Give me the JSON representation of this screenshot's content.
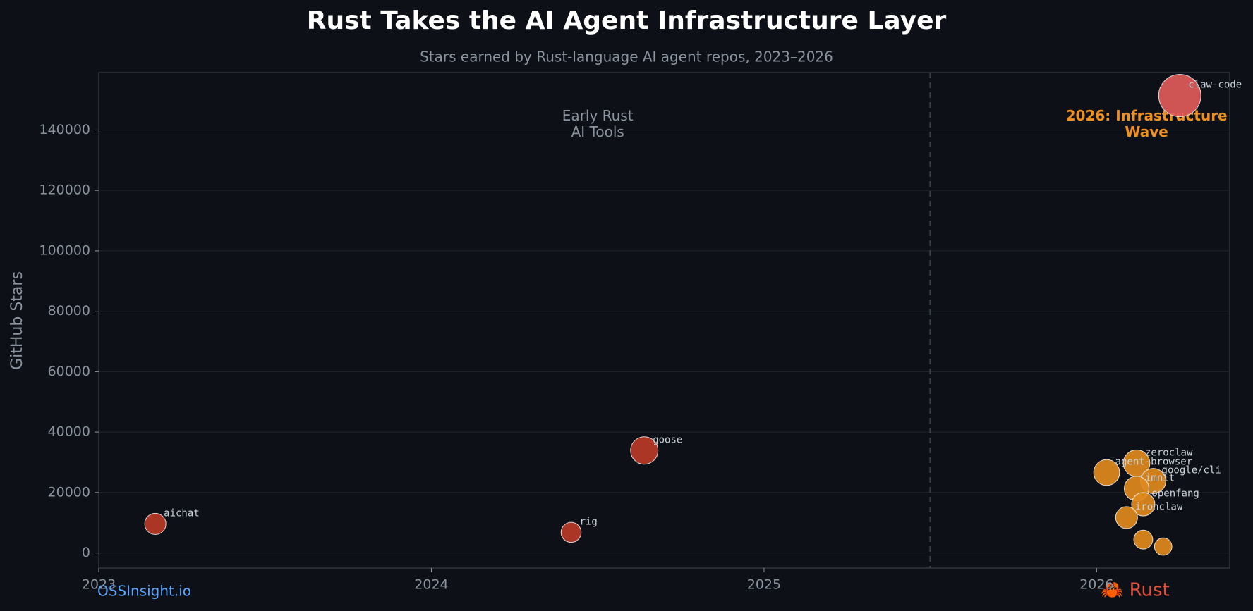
{
  "chart_data": {
    "type": "bubble",
    "title": "Rust Takes the AI Agent Infrastructure Layer",
    "subtitle": "Stars earned by Rust-language AI agent repos, 2023–2026",
    "y_label": "GitHub Stars",
    "xlim": [
      2023,
      2026.4
    ],
    "xticks": [
      2023,
      2024,
      2025,
      2026
    ],
    "ylim": [
      -5000,
      159000
    ],
    "yticks": [
      0,
      20000,
      40000,
      60000,
      80000,
      100000,
      120000,
      140000
    ],
    "grid": true,
    "vline": 2025.5,
    "series": [
      {
        "color": "#b83a28",
        "x": [
          2023.17,
          2024.42,
          2024.64
        ],
        "values": [
          9600,
          6800,
          33900
        ],
        "labels": [
          "aichat",
          "rig",
          "goose"
        ]
      },
      {
        "color": "#e08a1e",
        "x": [
          2026.03,
          2026.12,
          2026.17,
          2026.12,
          2026.14,
          2026.09,
          2026.14,
          2026.2
        ],
        "values": [
          26600,
          29700,
          23800,
          21300,
          16100,
          11700,
          4400,
          2100
        ],
        "labels": [
          "agent-browser",
          "zeroclaw",
          "google/cli",
          "imnit",
          "openfang",
          "ironclaw",
          null,
          null
        ]
      },
      {
        "color": "#e05a5a",
        "x": [
          2026.25
        ],
        "values": [
          151400
        ],
        "labels": [
          "claw-code"
        ]
      }
    ],
    "annotations": [
      {
        "lines": [
          "Early Rust",
          "AI Tools"
        ],
        "x": 2024.5,
        "y": 142000,
        "color": "#8b949e",
        "bold": false
      },
      {
        "lines": [
          "2026: Infrastructure",
          "Wave"
        ],
        "x": 2026.15,
        "y": 142000,
        "color": "#f0901e",
        "bold": true
      }
    ],
    "footer_left": "OSSInsight.io",
    "footer_right": "🦀 Rust"
  }
}
